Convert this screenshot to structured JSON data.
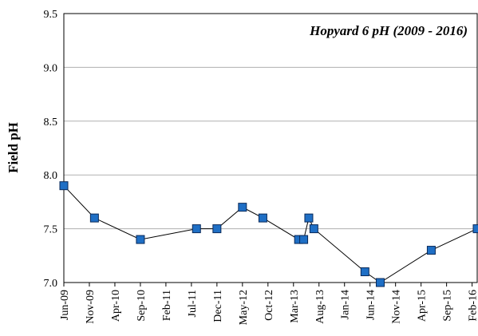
{
  "chart_data": {
    "type": "line",
    "title": "Hopyard 6 pH (2009 - 2016)",
    "y_label": "Field pH",
    "x": [
      "2009-06",
      "2009-12",
      "2010-09",
      "2011-08",
      "2011-12",
      "2012-05",
      "2012-09",
      "2013-04",
      "2013-05",
      "2013-06",
      "2013-07",
      "2014-05",
      "2014-08",
      "2015-06",
      "2016-03"
    ],
    "series": [
      {
        "name": "Field pH",
        "color": "#1f6fc5",
        "values": [
          7.9,
          7.6,
          7.4,
          7.5,
          7.5,
          7.7,
          7.6,
          7.4,
          7.4,
          7.6,
          7.5,
          7.1,
          7.0,
          7.3,
          7.5
        ]
      }
    ],
    "xlim": [
      "2009-06",
      "2016-03"
    ],
    "xticks": [
      {
        "value": "2009-06",
        "label": "Jun-09"
      },
      {
        "value": "2009-11",
        "label": "Nov-09"
      },
      {
        "value": "2010-04",
        "label": "Apr-10"
      },
      {
        "value": "2010-09",
        "label": "Sep-10"
      },
      {
        "value": "2011-02",
        "label": "Feb-11"
      },
      {
        "value": "2011-07",
        "label": "Jul-11"
      },
      {
        "value": "2011-12",
        "label": "Dec-11"
      },
      {
        "value": "2012-05",
        "label": "May-12"
      },
      {
        "value": "2012-10",
        "label": "Oct-12"
      },
      {
        "value": "2013-03",
        "label": "Mar-13"
      },
      {
        "value": "2013-08",
        "label": "Aug-13"
      },
      {
        "value": "2014-01",
        "label": "Jan-14"
      },
      {
        "value": "2014-06",
        "label": "Jun-14"
      },
      {
        "value": "2014-11",
        "label": "Nov-14"
      },
      {
        "value": "2015-04",
        "label": "Apr-15"
      },
      {
        "value": "2015-09",
        "label": "Sep-15"
      },
      {
        "value": "2016-02",
        "label": "Feb-16"
      }
    ],
    "ylim": [
      7.0,
      9.5
    ],
    "yticks": [
      {
        "value": 7,
        "label": "7.0"
      },
      {
        "value": 7.5,
        "label": "7.5"
      },
      {
        "value": 8,
        "label": "8.0"
      },
      {
        "value": 8.5,
        "label": "8.5"
      },
      {
        "value": 9,
        "label": "9.0"
      },
      {
        "value": 9.5,
        "label": "9.5"
      }
    ],
    "grid": true
  }
}
